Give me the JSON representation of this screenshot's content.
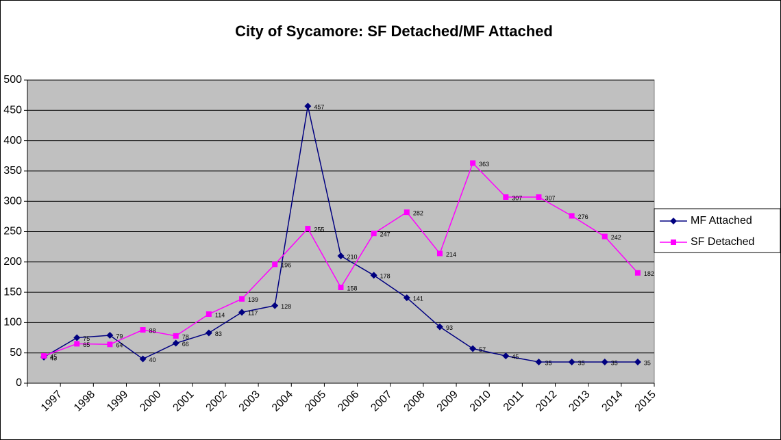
{
  "chart_data": {
    "type": "line",
    "title": "City of Sycamore: SF Detached/MF Attached",
    "categories": [
      "1997",
      "1998",
      "1999",
      "2000",
      "2001",
      "2002",
      "2003",
      "2004",
      "2005",
      "2006",
      "2007",
      "2008",
      "2009",
      "2010",
      "2011",
      "2012",
      "2013",
      "2014",
      "2015"
    ],
    "series": [
      {
        "name": "MF Attached",
        "color": "#000080",
        "marker": "diamond",
        "values": [
          43,
          75,
          79,
          40,
          66,
          83,
          117,
          128,
          457,
          210,
          178,
          141,
          93,
          57,
          45,
          35,
          35,
          35,
          35
        ]
      },
      {
        "name": "SF Detached",
        "color": "#ff00ff",
        "marker": "square",
        "values": [
          45,
          65,
          64,
          88,
          78,
          114,
          139,
          196,
          255,
          158,
          247,
          282,
          214,
          363,
          307,
          307,
          276,
          242,
          182
        ]
      }
    ],
    "ylim": [
      0,
      500
    ],
    "yticks": [
      0,
      50,
      100,
      150,
      200,
      250,
      300,
      350,
      400,
      450,
      500
    ],
    "grid": true,
    "legend": "right"
  }
}
